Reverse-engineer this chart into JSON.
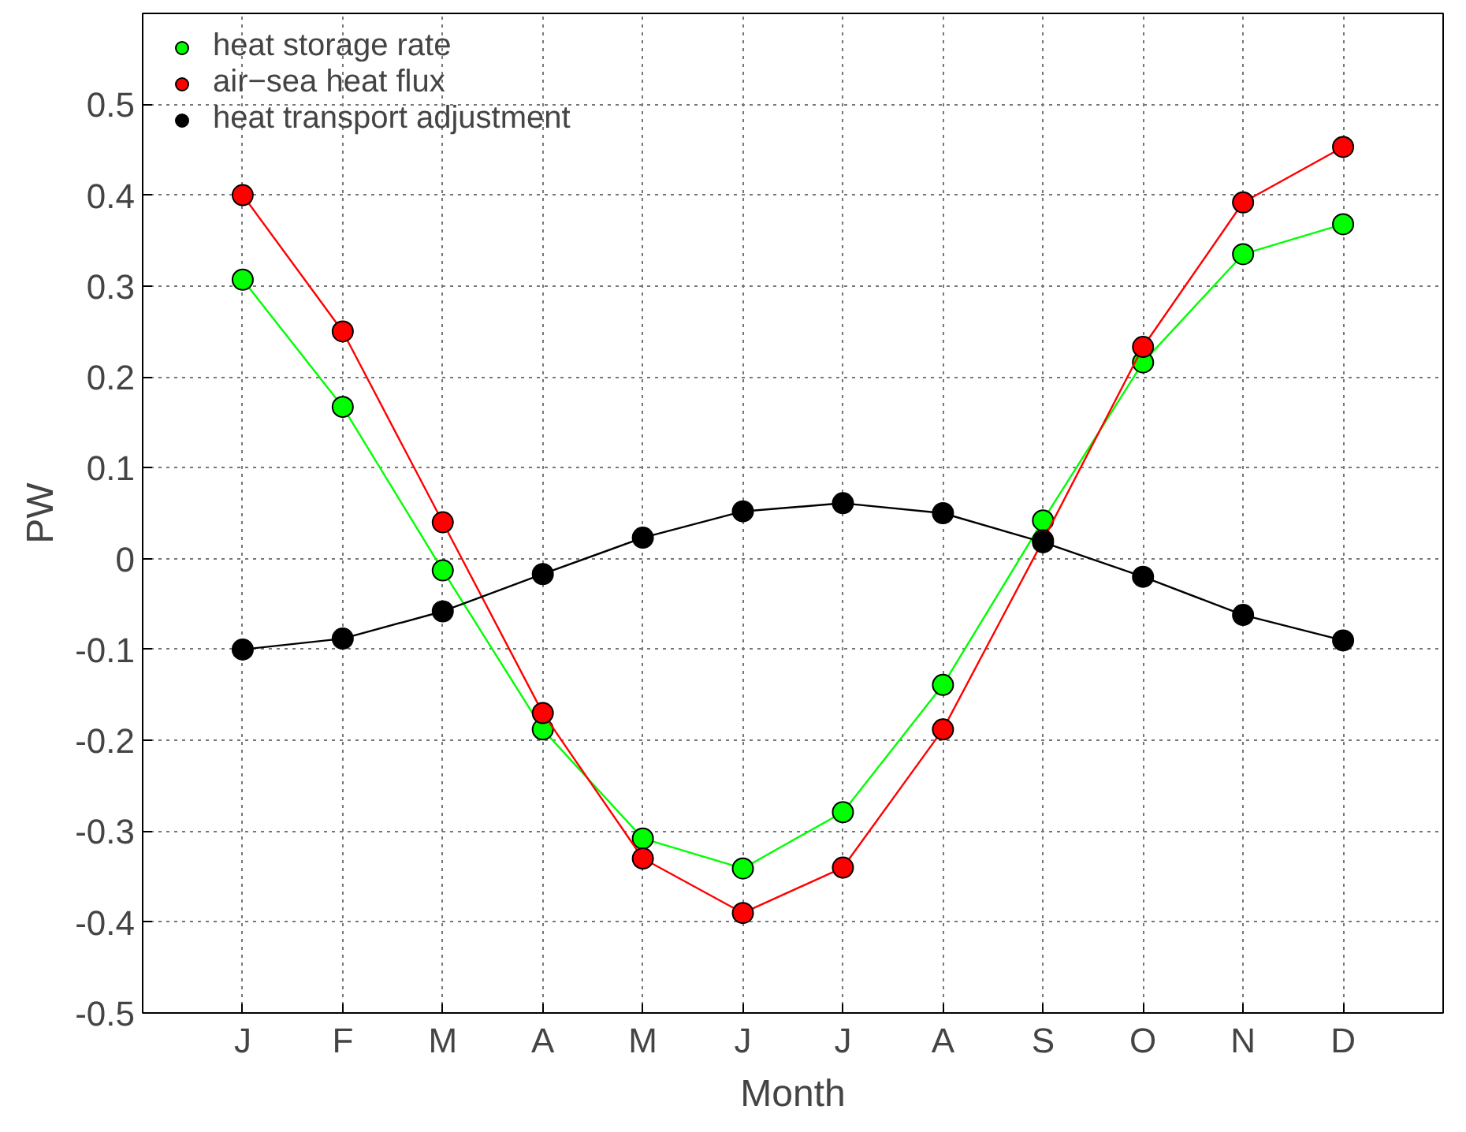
{
  "chart_data": {
    "type": "line",
    "xlabel": "Month",
    "ylabel": "PW",
    "categories": [
      "J",
      "F",
      "M",
      "A",
      "M",
      "J",
      "J",
      "A",
      "S",
      "O",
      "N",
      "D"
    ],
    "series": [
      {
        "name": "heat storage rate",
        "color": "#00ff00",
        "values": [
          0.307,
          0.167,
          -0.013,
          -0.188,
          -0.308,
          -0.341,
          -0.279,
          -0.139,
          0.042,
          0.216,
          0.335,
          0.368
        ]
      },
      {
        "name": "air−sea heat flux",
        "color": "#ff0000",
        "values": [
          0.4,
          0.25,
          0.04,
          -0.17,
          -0.33,
          -0.39,
          -0.34,
          -0.188,
          0.02,
          0.233,
          0.392,
          0.453
        ]
      },
      {
        "name": "heat transport adjustment",
        "color": "#000000",
        "values": [
          -0.1,
          -0.088,
          -0.058,
          -0.017,
          0.023,
          0.052,
          0.061,
          0.05,
          0.018,
          -0.02,
          -0.062,
          -0.09
        ]
      }
    ],
    "ylim": [
      -0.5,
      0.6
    ],
    "yticks": [
      -0.5,
      -0.4,
      -0.3,
      -0.2,
      -0.1,
      0,
      0.1,
      0.2,
      0.3,
      0.4,
      0.5
    ],
    "grid": true,
    "legend": "top left",
    "marker": "circle",
    "line_style": "solid"
  }
}
